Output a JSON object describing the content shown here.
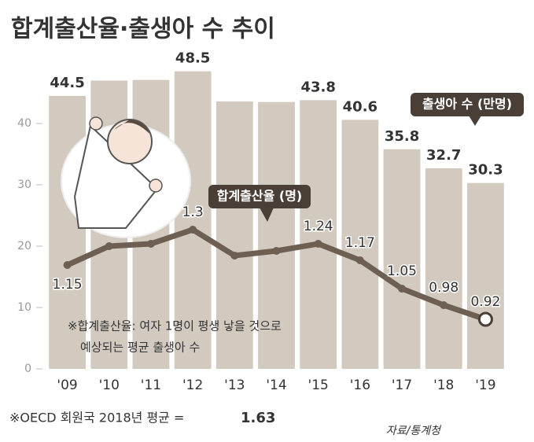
{
  "chart_data": {
    "type": "bar",
    "title": "합계출산율·출생아 수 추이",
    "categories": [
      "'09",
      "'10",
      "'11",
      "'12",
      "'13",
      "'14",
      "'15",
      "'16",
      "'17",
      "'18",
      "'19"
    ],
    "ylim": [
      0,
      50
    ],
    "yticks": [
      0,
      10,
      20,
      30,
      40
    ],
    "y2lim": [
      0.71,
      2.01
    ],
    "series": [
      {
        "name": "출생아 수 (만명)",
        "type": "bar",
        "color": "#d2c9bf",
        "values": [
          44.5,
          47.0,
          47.1,
          48.5,
          43.6,
          43.5,
          43.8,
          40.6,
          35.8,
          32.7,
          30.3
        ],
        "value_labels": [
          "44.5",
          null,
          null,
          "48.5",
          null,
          null,
          "43.8",
          "40.6",
          "35.8",
          "32.7",
          "30.3"
        ]
      },
      {
        "name": "합계출산율 (명)",
        "type": "line",
        "axis": "y2",
        "color": "#6e5f53",
        "values": [
          1.15,
          1.23,
          1.24,
          1.3,
          1.19,
          1.21,
          1.24,
          1.17,
          1.05,
          0.98,
          0.92
        ],
        "value_labels": [
          "1.15",
          null,
          null,
          "1.3",
          null,
          null,
          "1.24",
          "1.17",
          "1.05",
          "0.98",
          "0.92"
        ]
      }
    ],
    "note": [
      "※합계출산율: 여자 1명이 평생 낳을 것으로",
      "예상되는 평균 출생아 수"
    ],
    "footnote": {
      "text": "※OECD 회원국 2018년 평균 =",
      "value": "1.63"
    },
    "source": "자료/통계청"
  }
}
